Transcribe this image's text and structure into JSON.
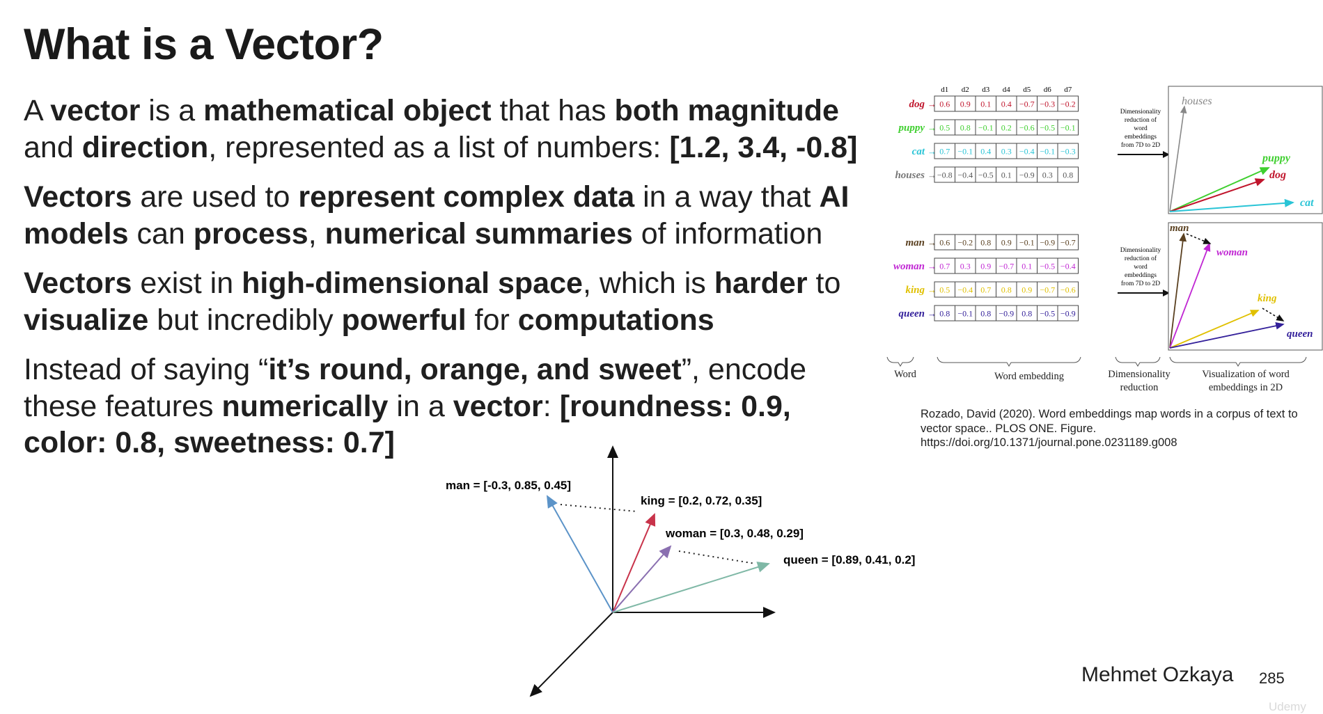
{
  "title": "What is a Vector?",
  "bullets": {
    "b1": {
      "t1": "A ",
      "t2": "vector",
      "t3": " is a ",
      "t4": "mathematical object",
      "t5": " that has ",
      "t6": "both magnitude",
      "t7": " and ",
      "t8": "direction",
      "t9": ", represented as a list of numbers: ",
      "t10": "[1.2, 3.4, -0.8]"
    },
    "b2": {
      "t1": "Vectors",
      "t2": " are used to ",
      "t3": "represent complex data",
      "t4": " in a way that ",
      "t5": "AI models",
      "t6": " can ",
      "t7": "process",
      "t8": ", ",
      "t9": "numerical summaries",
      "t10": " of information"
    },
    "b3": {
      "t1": "Vectors",
      "t2": " exist in ",
      "t3": "high-dimensional space",
      "t4": ", which is ",
      "t5": "harder",
      "t6": " to ",
      "t7": "visualize",
      "t8": " but incredibly ",
      "t9": "powerful",
      "t10": " for ",
      "t11": "computations"
    },
    "b4": {
      "t1": "Instead of saying “",
      "t2": "it’s round, orange, and sweet",
      "t3": "”, encode these features ",
      "t4": "numerically",
      "t5": " in a ",
      "t6": "vector",
      "t7": ": ",
      "t8": "[roundness: 0.9, color: 0.8, sweetness: 0.7]"
    }
  },
  "embedding_figure": {
    "dimensions": [
      "d1",
      "d2",
      "d3",
      "d4",
      "d5",
      "d6",
      "d7"
    ],
    "group1": [
      {
        "word": "dog",
        "color": "#c0152c",
        "values": [
          "0.6",
          "0.9",
          "0.1",
          "0.4",
          "−0.7",
          "−0.3",
          "−0.2"
        ]
      },
      {
        "word": "puppy",
        "color": "#3fcf2f",
        "values": [
          "0.5",
          "0.8",
          "−0.1",
          "0.2",
          "−0.6",
          "−0.5",
          "−0.1"
        ]
      },
      {
        "word": "cat",
        "color": "#29c4d6",
        "values": [
          "0.7",
          "−0.1",
          "0.4",
          "0.3",
          "−0.4",
          "−0.1",
          "−0.3"
        ]
      },
      {
        "word": "houses",
        "color": "#777777",
        "values": [
          "−0.8",
          "−0.4",
          "−0.5",
          "0.1",
          "−0.9",
          "0.3",
          "0.8"
        ]
      }
    ],
    "group2": [
      {
        "word": "man",
        "color": "#5a4020",
        "values": [
          "0.6",
          "−0.2",
          "0.8",
          "0.9",
          "−0.1",
          "−0.9",
          "−0.7"
        ]
      },
      {
        "word": "woman",
        "color": "#c026d3",
        "values": [
          "0.7",
          "0.3",
          "0.9",
          "−0.7",
          "0.1",
          "−0.5",
          "−0.4"
        ]
      },
      {
        "word": "king",
        "color": "#e0c000",
        "values": [
          "0.5",
          "−0.4",
          "0.7",
          "0.8",
          "0.9",
          "−0.7",
          "−0.6"
        ]
      },
      {
        "word": "queen",
        "color": "#33209a",
        "values": [
          "0.8",
          "−0.1",
          "0.8",
          "−0.9",
          "0.8",
          "−0.5",
          "−0.9"
        ]
      }
    ],
    "reduction_note": [
      "Dimensionality",
      "reduction of",
      "word",
      "embeddings",
      "from 7D to 2D"
    ],
    "plot1_labels": {
      "houses": "houses",
      "puppy": "puppy",
      "dog": "dog",
      "cat": "cat"
    },
    "plot2_labels": {
      "man": "man",
      "woman": "woman",
      "king": "king",
      "queen": "queen"
    },
    "bottom_labels": {
      "word": "Word",
      "word_embedding": "Word embedding",
      "reduction": [
        "Dimensionality",
        "reduction"
      ],
      "visualization": [
        "Visualization of word",
        "embeddings  in 2D"
      ]
    }
  },
  "citation": {
    "line1": "Rozado, David (2020). Word embeddings map words in a corpus of text to",
    "line2": "vector space.. PLOS ONE. Figure.",
    "line3": "https://doi.org/10.1371/journal.pone.0231189.g008"
  },
  "vector_diagram": {
    "man": {
      "label": "man = [-0.3, 0.85, 0.45]",
      "color": "#5b93c8"
    },
    "king": {
      "label": "king = [0.2, 0.72, 0.35]",
      "color": "#c8334a"
    },
    "woman": {
      "label": "woman = [0.3, 0.48, 0.29]",
      "color": "#8a6fb0"
    },
    "queen": {
      "label": "queen = [0.89, 0.41, 0.2]",
      "color": "#7fb8a6"
    }
  },
  "footer": {
    "author": "Mehmet Ozkaya",
    "page": "285",
    "watermark": "Udemy"
  }
}
